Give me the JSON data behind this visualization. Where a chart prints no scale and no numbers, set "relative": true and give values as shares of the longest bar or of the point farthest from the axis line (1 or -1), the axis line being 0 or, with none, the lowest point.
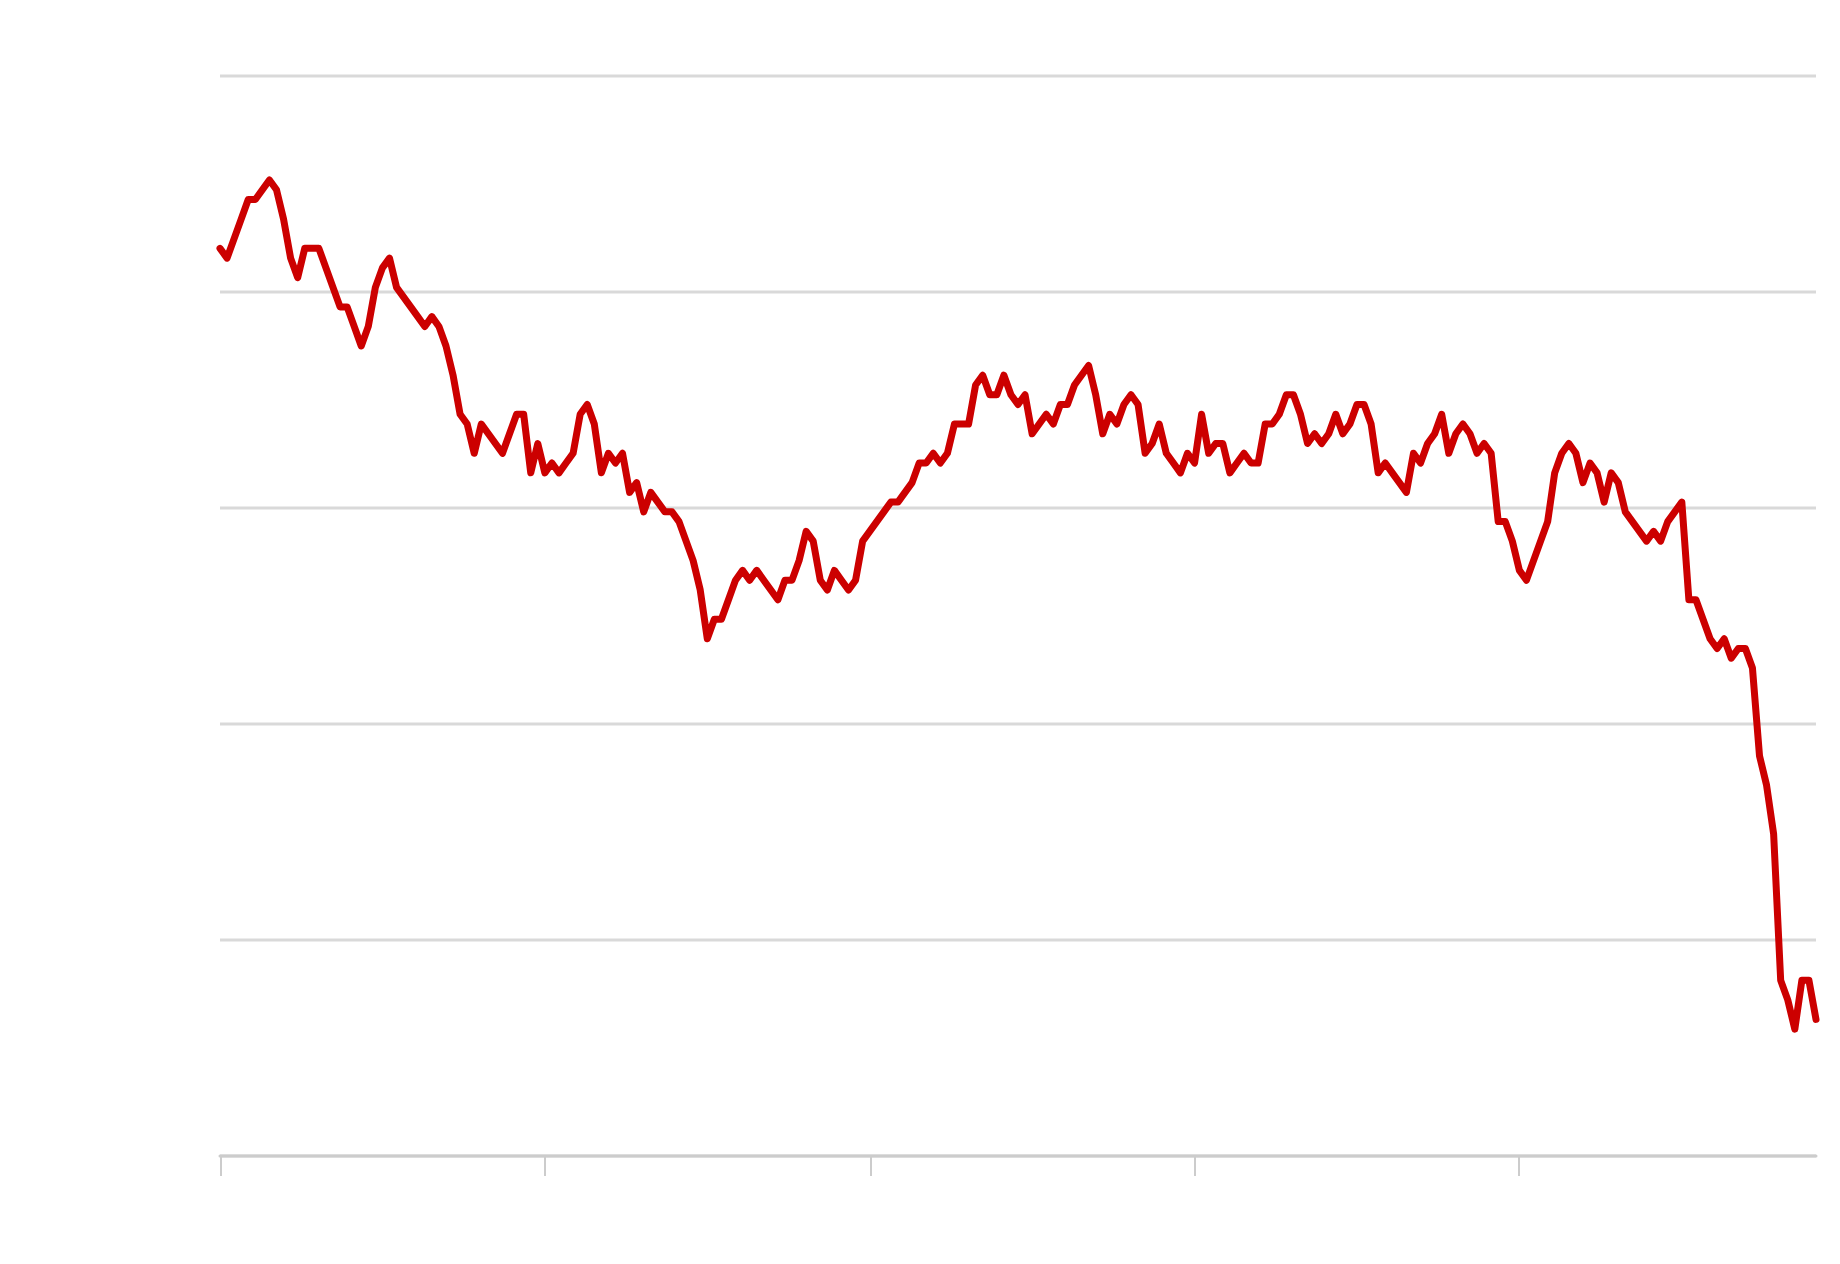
{
  "chart_data": {
    "type": "line",
    "relative": true,
    "grid": "y",
    "line_style": "solid",
    "categories": [
      null,
      null,
      null,
      null,
      null,
      null,
      null,
      null,
      null,
      null,
      null,
      null,
      null,
      null,
      null,
      null,
      null,
      null,
      null,
      null,
      null,
      null,
      null,
      null,
      null,
      null,
      null,
      null,
      null,
      null,
      null,
      null,
      null,
      null,
      null,
      null,
      null,
      null,
      null,
      null,
      null,
      null,
      null,
      null,
      null,
      null,
      null,
      null,
      null,
      null,
      null,
      null,
      null,
      null,
      null,
      null,
      null,
      null,
      null,
      null,
      null,
      null,
      null,
      null,
      null,
      null,
      null,
      null,
      null,
      null,
      null,
      null,
      null,
      null,
      null,
      null,
      null,
      null,
      null,
      null,
      null,
      null,
      null,
      null,
      null,
      null,
      null,
      null,
      null,
      null,
      null,
      null,
      null,
      null,
      null,
      null,
      null,
      null,
      null,
      null,
      null,
      null,
      null,
      null,
      null,
      null,
      null,
      null,
      null,
      null,
      null,
      null,
      null,
      null,
      null,
      null,
      null,
      null,
      null,
      null,
      null,
      null,
      null,
      null,
      null,
      null,
      null,
      null,
      null,
      null,
      null,
      null,
      null,
      null,
      null,
      null,
      null,
      null,
      null,
      null,
      null,
      null,
      null,
      null,
      null,
      null,
      null,
      null,
      null,
      null,
      null,
      null,
      null,
      null,
      null,
      null,
      null,
      null,
      null,
      null,
      null,
      null,
      null,
      null,
      null,
      null,
      null,
      null,
      null,
      null,
      null,
      null,
      null,
      null,
      null,
      null,
      null,
      null,
      null,
      null,
      null,
      null,
      null,
      null,
      null,
      null,
      null,
      null,
      null,
      null,
      null,
      null,
      null,
      null,
      null,
      null,
      null,
      null,
      null,
      null,
      null,
      null,
      null,
      null,
      null,
      null,
      null,
      null,
      null,
      null,
      null,
      null,
      null,
      null,
      null,
      null,
      null,
      null,
      null,
      null,
      null,
      null,
      null,
      null,
      null,
      null,
      null
    ],
    "series": [
      {
        "color": "#cc0000",
        "values": [
          0.93,
          0.92,
          0.94,
          0.96,
          0.98,
          0.98,
          0.99,
          1,
          0.99,
          0.96,
          0.92,
          0.9,
          0.93,
          0.93,
          0.93,
          0.91,
          0.89,
          0.87,
          0.87,
          0.85,
          0.83,
          0.85,
          0.89,
          0.91,
          0.92,
          0.89,
          0.88,
          0.87,
          0.86,
          0.85,
          0.86,
          0.85,
          0.83,
          0.8,
          0.76,
          0.75,
          0.72,
          0.75,
          0.74,
          0.73,
          0.72,
          0.74,
          0.76,
          0.76,
          0.7,
          0.73,
          0.7,
          0.71,
          0.7,
          0.71,
          0.72,
          0.76,
          0.77,
          0.75,
          0.7,
          0.72,
          0.71,
          0.72,
          0.68,
          0.69,
          0.66,
          0.68,
          0.67,
          0.66,
          0.66,
          0.65,
          0.63,
          0.61,
          0.58,
          0.53,
          0.55,
          0.55,
          0.57,
          0.59,
          0.6,
          0.59,
          0.6,
          0.59,
          0.58,
          0.57,
          0.59,
          0.59,
          0.61,
          0.64,
          0.63,
          0.59,
          0.58,
          0.6,
          0.59,
          0.58,
          0.59,
          0.63,
          0.64,
          0.65,
          0.66,
          0.67,
          0.67,
          0.68,
          0.69,
          0.71,
          0.71,
          0.72,
          0.71,
          0.72,
          0.75,
          0.75,
          0.75,
          0.79,
          0.8,
          0.78,
          0.78,
          0.8,
          0.78,
          0.77,
          0.78,
          0.74,
          0.75,
          0.76,
          0.75,
          0.77,
          0.77,
          0.79,
          0.8,
          0.81,
          0.78,
          0.74,
          0.76,
          0.75,
          0.77,
          0.78,
          0.77,
          0.72,
          0.73,
          0.75,
          0.72,
          0.71,
          0.7,
          0.72,
          0.71,
          0.76,
          0.72,
          0.73,
          0.73,
          0.7,
          0.71,
          0.72,
          0.71,
          0.71,
          0.75,
          0.75,
          0.76,
          0.78,
          0.78,
          0.76,
          0.73,
          0.74,
          0.73,
          0.74,
          0.76,
          0.74,
          0.75,
          0.77,
          0.77,
          0.75,
          0.7,
          0.71,
          0.7,
          0.69,
          0.68,
          0.72,
          0.71,
          0.73,
          0.74,
          0.76,
          0.72,
          0.74,
          0.75,
          0.74,
          0.72,
          0.73,
          0.72,
          0.65,
          0.65,
          0.63,
          0.6,
          0.59,
          0.61,
          0.63,
          0.65,
          0.7,
          0.72,
          0.73,
          0.72,
          0.69,
          0.71,
          0.7,
          0.67,
          0.7,
          0.69,
          0.66,
          0.65,
          0.64,
          0.63,
          0.64,
          0.63,
          0.65,
          0.66,
          0.67,
          0.57,
          0.57,
          0.55,
          0.53,
          0.52,
          0.53,
          0.51,
          0.52,
          0.52,
          0.5,
          0.41,
          0.38,
          0.33,
          0.18,
          0.16,
          0.13,
          0.18,
          0.18,
          0.14
        ]
      }
    ]
  }
}
